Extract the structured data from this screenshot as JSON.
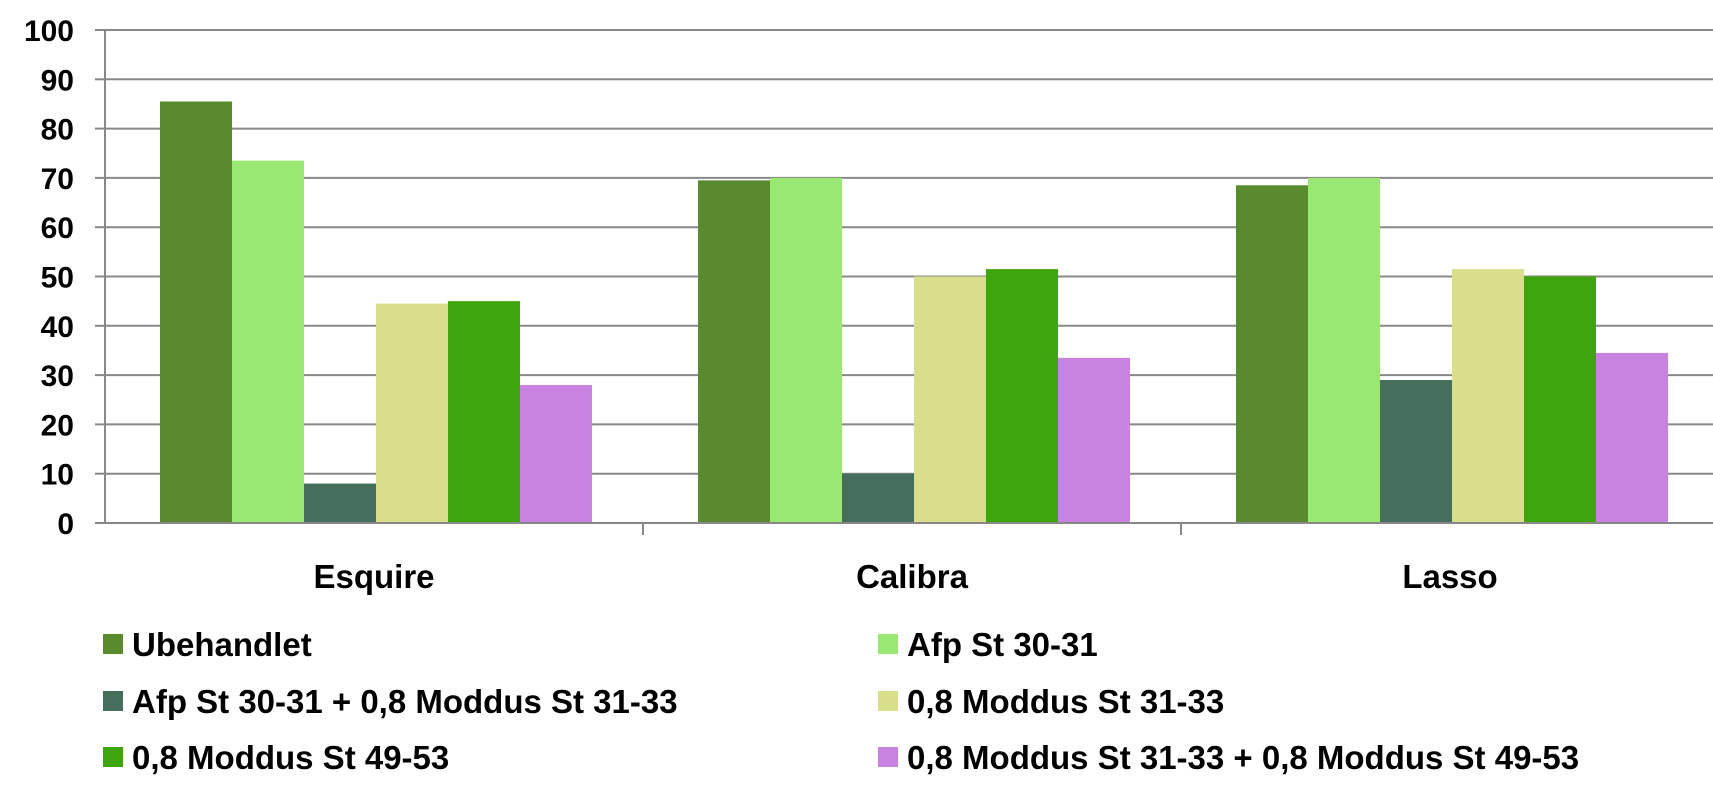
{
  "chart_data": {
    "type": "bar",
    "title": "",
    "xlabel": "",
    "ylabel": "",
    "ylim": [
      0,
      100
    ],
    "yticks": [
      0,
      10,
      20,
      30,
      40,
      50,
      60,
      70,
      80,
      90,
      100
    ],
    "grid": true,
    "legend_position": "bottom",
    "categories": [
      "Esquire",
      "Calibra",
      "Lasso"
    ],
    "series": [
      {
        "name": "Ubehandlet",
        "color": "#5a8a2e",
        "values": [
          85.5,
          69.5,
          68.5
        ]
      },
      {
        "name": "Afp St 30-31",
        "color": "#99e874",
        "values": [
          73.5,
          70,
          70
        ]
      },
      {
        "name": "Afp St 30-31 + 0,8 Moddus St 31-33",
        "color": "#456e5c",
        "values": [
          8,
          10,
          29
        ]
      },
      {
        "name": "0,8 Moddus St 31-33",
        "color": "#d8de8a",
        "values": [
          44.5,
          50,
          51.5
        ]
      },
      {
        "name": "0,8 Moddus St 49-53",
        "color": "#3fa50c",
        "values": [
          45,
          51.5,
          50
        ]
      },
      {
        "name": "0,8 Moddus St 31-33 + 0,8 Moddus St 49-53",
        "color": "#c882e0",
        "values": [
          28,
          33.5,
          34.5
        ]
      }
    ]
  }
}
